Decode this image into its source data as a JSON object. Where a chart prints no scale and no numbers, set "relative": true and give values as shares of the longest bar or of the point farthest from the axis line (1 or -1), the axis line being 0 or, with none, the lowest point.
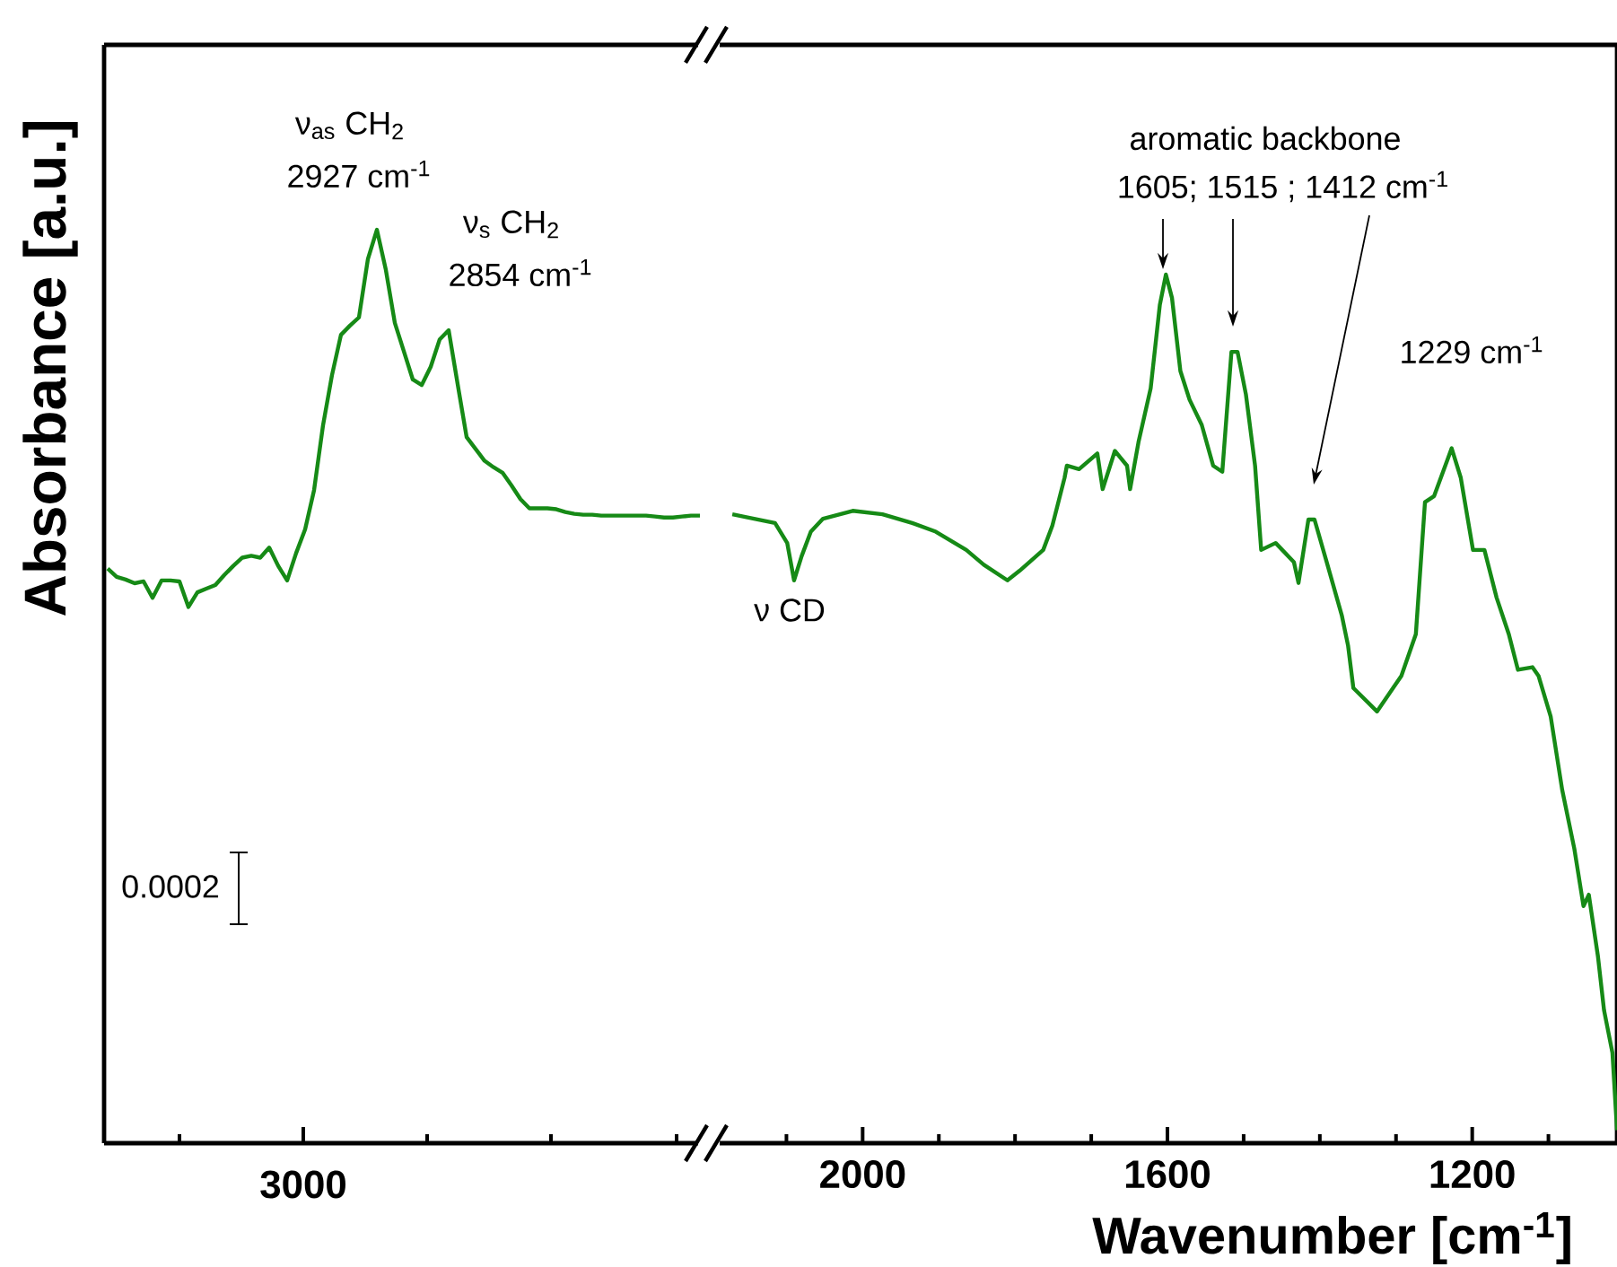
{
  "chart_data": [
    {
      "type": "line",
      "relative": true,
      "color": "#168a16",
      "ylabel": "Absorbance [a.u.]",
      "categories": [
        null,
        null,
        null,
        null,
        null,
        null,
        null,
        null,
        null,
        null,
        null,
        null,
        null,
        null,
        null,
        null,
        null,
        null,
        null,
        null,
        null,
        null,
        null,
        null,
        null,
        null,
        null,
        null,
        null,
        null,
        null,
        null,
        null,
        null,
        null,
        null,
        null,
        null,
        null,
        null,
        null,
        null,
        null,
        null,
        null,
        null,
        null,
        null,
        null,
        null,
        null,
        null,
        null,
        null,
        null,
        null,
        null,
        null,
        null,
        null,
        null,
        null,
        null,
        null,
        null,
        null,
        null
      ],
      "values": [
        0.629,
        0.62,
        0.617,
        0.613,
        0.615,
        0.597,
        0.616,
        0.616,
        0.615,
        0.587,
        0.603,
        0.607,
        0.611,
        0.622,
        0.632,
        0.641,
        0.643,
        0.641,
        0.652,
        0.632,
        0.616,
        0.646,
        0.672,
        0.715,
        0.786,
        0.841,
        0.885,
        0.895,
        0.904,
        0.968,
        1.0,
        0.956,
        0.898,
        0.867,
        0.836,
        0.83,
        0.85,
        0.88,
        0.89,
        0.831,
        0.773,
        0.76,
        0.747,
        0.74,
        0.734,
        0.72,
        0.705,
        0.695,
        0.695,
        0.695,
        0.694,
        0.691,
        0.689,
        0.688,
        0.688,
        0.687,
        0.687,
        0.687,
        0.687,
        0.687,
        0.687,
        0.686,
        0.685,
        0.685,
        0.686,
        0.687,
        0.687
      ],
      "annotations": [
        "3000",
        "ν$_{as}$ CH$_{2}$",
        "2927 cm$^{-1}$",
        "ν$_{s}$ CH$_{2}$",
        "2854 cm$^{-1}$",
        "0.0002"
      ]
    },
    {
      "type": "line",
      "relative": true,
      "color": "#168a16",
      "xlabel": "Wavenumber [cm$^{-1}$]",
      "xlim": [
        2190,
        1010
      ],
      "xticks": [
        {
          "value": 2100,
          "label": null
        },
        2000,
        {
          "value": 1900,
          "label": null
        },
        {
          "value": 1800,
          "label": null
        },
        {
          "value": 1700,
          "label": null
        },
        1600,
        {
          "value": 1500,
          "label": null
        },
        {
          "value": 1400,
          "label": null
        },
        {
          "value": 1300,
          "label": null
        },
        1200,
        {
          "value": 1100,
          "label": null
        }
      ],
      "x": [
        2171,
        2154,
        2115,
        2099,
        2090,
        2080,
        2068,
        2052,
        2013,
        1974,
        1935,
        1904,
        1864,
        1841,
        1810,
        1794,
        1763,
        1751,
        1735,
        1732,
        1716,
        1692,
        1685,
        1669,
        1653,
        1649,
        1638,
        1622,
        1610,
        1602,
        1594,
        1583,
        1571,
        1555,
        1540,
        1528,
        1516,
        1508,
        1497,
        1485,
        1477,
        1458,
        1434,
        1428,
        1415,
        1407,
        1391,
        1371,
        1363,
        1356,
        1325,
        1293,
        1274,
        1262,
        1250,
        1227,
        1215,
        1199,
        1184,
        1168,
        1152,
        1140,
        1121,
        1113,
        1097,
        1082,
        1066,
        1054,
        1047,
        1035,
        1027,
        1016,
        1010
      ],
      "values": [
        0.724,
        0.721,
        0.714,
        0.691,
        0.648,
        0.676,
        0.704,
        0.719,
        0.728,
        0.724,
        0.714,
        0.704,
        0.683,
        0.666,
        0.648,
        0.659,
        0.683,
        0.711,
        0.766,
        0.78,
        0.776,
        0.794,
        0.753,
        0.797,
        0.78,
        0.753,
        0.807,
        0.869,
        0.965,
        1.0,
        0.973,
        0.889,
        0.856,
        0.827,
        0.78,
        0.773,
        0.911,
        0.911,
        0.862,
        0.78,
        0.683,
        0.691,
        0.669,
        0.645,
        0.718,
        0.718,
        0.669,
        0.607,
        0.573,
        0.524,
        0.497,
        0.538,
        0.586,
        0.738,
        0.745,
        0.8,
        0.766,
        0.683,
        0.683,
        0.628,
        0.586,
        0.545,
        0.548,
        0.538,
        0.491,
        0.407,
        0.339,
        0.273,
        0.286,
        0.215,
        0.153,
        0.104,
        0.015
      ],
      "annotations": [
        "ν CD",
        "aromatic backbone",
        "1605; 1515 ; 1412 cm$^{-1}$",
        "1229 cm$^{-1}$"
      ]
    }
  ]
}
